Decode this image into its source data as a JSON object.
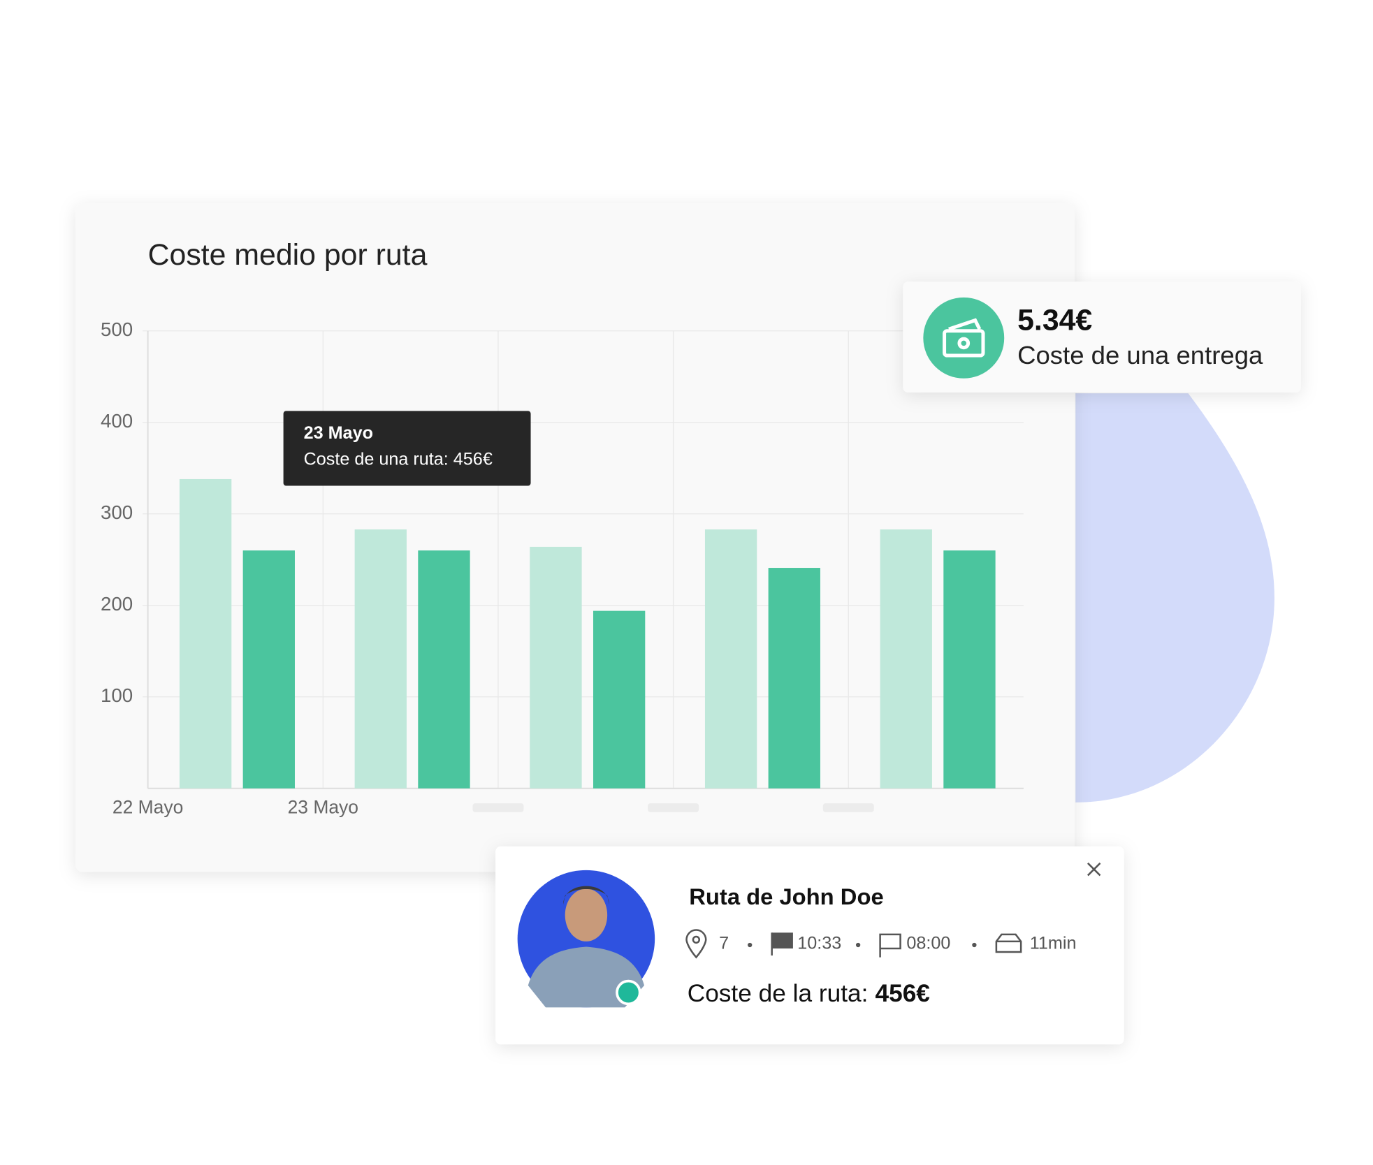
{
  "chart_data": {
    "type": "bar",
    "title": "Coste medio por ruta",
    "categories": [
      "22 Mayo",
      "23 Mayo",
      null,
      null,
      null
    ],
    "series": [
      {
        "color": "#bfe8da",
        "values": [
          338,
          283,
          264,
          283,
          283
        ]
      },
      {
        "color": "#4bc59e",
        "values": [
          260,
          260,
          194,
          241,
          260
        ]
      }
    ],
    "ylim": [
      0,
      500
    ],
    "yticks": [
      100,
      200,
      300,
      400,
      500
    ],
    "grid": true
  },
  "tooltip": {
    "title": "23 Mayo",
    "text": "Coste de una ruta: 456€"
  },
  "kpi": {
    "value": "5.34€",
    "label": "Coste de una entrega"
  },
  "route": {
    "title": "Ruta de John Doe",
    "stops": "7",
    "start": "10:33",
    "end": "08:00",
    "duration": "11min",
    "cost_label": "Coste de la ruta:",
    "cost_value": "456€"
  }
}
